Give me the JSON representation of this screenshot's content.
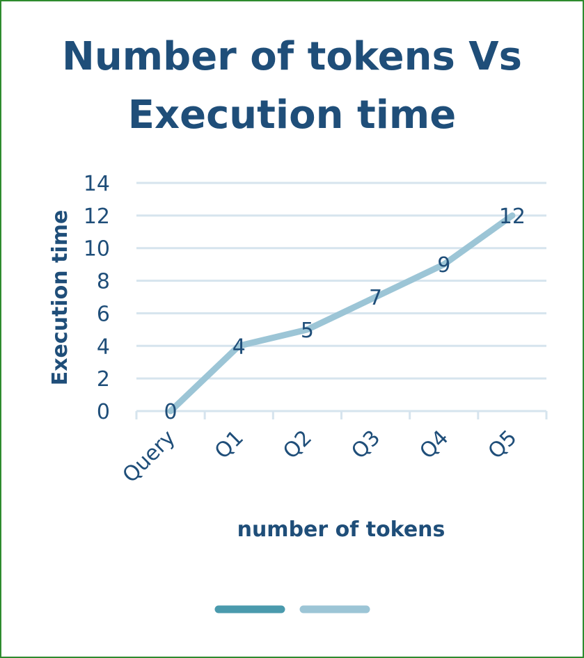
{
  "chart_data": {
    "type": "line",
    "title_lines": [
      "Number of tokens Vs",
      "Execution time"
    ],
    "xlabel": "number of tokens",
    "ylabel": "Execution time",
    "categories": [
      "Query",
      "Q1",
      "Q2",
      "Q3",
      "Q4",
      "Q5"
    ],
    "series": [
      {
        "values": [
          0,
          4,
          5,
          7,
          9,
          12
        ]
      }
    ],
    "ylim": [
      0,
      14
    ],
    "yticks": [
      0,
      2,
      4,
      6,
      8,
      10,
      12,
      14
    ],
    "data_labels": true,
    "grid": true,
    "legend": "bottom",
    "legend_colors": [
      "#4a9aad",
      "#9cc5d6"
    ],
    "colors": {
      "line": "#9cc5d6",
      "grid": "#d6e4ee",
      "text": "#1f4e79",
      "frame": "#2e8b2e"
    }
  }
}
